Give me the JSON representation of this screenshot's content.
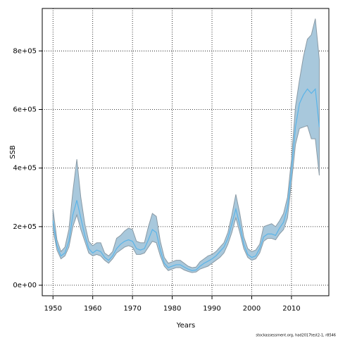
{
  "chart_data": {
    "type": "line",
    "x_label": "Years",
    "y_label": "SSB",
    "caption": "stockassessment.org, had2017test2-1, r8546",
    "x": [
      1950,
      1951,
      1952,
      1953,
      1954,
      1955,
      1956,
      1957,
      1958,
      1959,
      1960,
      1961,
      1962,
      1963,
      1964,
      1965,
      1966,
      1967,
      1968,
      1969,
      1970,
      1971,
      1972,
      1973,
      1974,
      1975,
      1976,
      1977,
      1978,
      1979,
      1980,
      1981,
      1982,
      1983,
      1984,
      1985,
      1986,
      1987,
      1988,
      1989,
      1990,
      1991,
      1992,
      1993,
      1994,
      1995,
      1996,
      1997,
      1998,
      1999,
      2000,
      2001,
      2002,
      2003,
      2004,
      2005,
      2006,
      2007,
      2008,
      2009,
      2010,
      2011,
      2012,
      2013,
      2014,
      2015,
      2016,
      2017
    ],
    "series": [
      {
        "color": "#5ab4e8",
        "band_color": "#a8c8dc",
        "band_edge": "#8a9aa5",
        "values": [
          220000,
          135000,
          100000,
          110000,
          150000,
          240000,
          290000,
          230000,
          170000,
          125000,
          110000,
          120000,
          115000,
          95000,
          85000,
          100000,
          125000,
          140000,
          150000,
          155000,
          150000,
          125000,
          120000,
          125000,
          155000,
          190000,
          180000,
          120000,
          75000,
          60000,
          65000,
          70000,
          70000,
          62000,
          55000,
          50000,
          52000,
          65000,
          75000,
          82000,
          90000,
          100000,
          115000,
          130000,
          160000,
          210000,
          260000,
          205000,
          140000,
          105000,
          95000,
          100000,
          125000,
          165000,
          175000,
          175000,
          170000,
          195000,
          215000,
          265000,
          390000,
          540000,
          620000,
          650000,
          670000,
          655000,
          670000,
          540000
        ],
        "lower": [
          190000,
          120000,
          90000,
          100000,
          130000,
          200000,
          240000,
          190000,
          150000,
          110000,
          100000,
          105000,
          100000,
          85000,
          75000,
          90000,
          110000,
          120000,
          130000,
          135000,
          130000,
          105000,
          105000,
          110000,
          130000,
          150000,
          145000,
          100000,
          65000,
          50000,
          55000,
          60000,
          60000,
          52000,
          47000,
          43000,
          45000,
          55000,
          60000,
          65000,
          75000,
          85000,
          95000,
          110000,
          140000,
          180000,
          230000,
          180000,
          125000,
          95000,
          85000,
          90000,
          110000,
          150000,
          160000,
          160000,
          155000,
          175000,
          190000,
          230000,
          350000,
          480000,
          535000,
          540000,
          545000,
          500000,
          500000,
          375000
        ],
        "upper": [
          260000,
          155000,
          115000,
          130000,
          190000,
          320000,
          430000,
          300000,
          210000,
          150000,
          135000,
          145000,
          145000,
          110000,
          100000,
          115000,
          160000,
          170000,
          185000,
          195000,
          190000,
          150000,
          145000,
          145000,
          200000,
          245000,
          235000,
          150000,
          95000,
          75000,
          80000,
          85000,
          85000,
          75000,
          65000,
          60000,
          62000,
          80000,
          90000,
          100000,
          105000,
          115000,
          130000,
          145000,
          180000,
          240000,
          310000,
          245000,
          165000,
          125000,
          115000,
          120000,
          140000,
          200000,
          205000,
          210000,
          200000,
          220000,
          245000,
          300000,
          430000,
          610000,
          700000,
          780000,
          840000,
          855000,
          910000,
          770000
        ]
      }
    ],
    "xlim": [
      1947.3,
      2019.4
    ],
    "ylim": [
      -36000,
      945000
    ],
    "xticks": [
      1950,
      1960,
      1970,
      1980,
      1990,
      2000,
      2010
    ],
    "yticks": [
      {
        "value": 0,
        "label": "0e+00"
      },
      {
        "value": 200000,
        "label": "2e+05"
      },
      {
        "value": 400000,
        "label": "4e+05"
      },
      {
        "value": 600000,
        "label": "6e+05"
      },
      {
        "value": 800000,
        "label": "8e+05"
      }
    ],
    "grid": true
  }
}
